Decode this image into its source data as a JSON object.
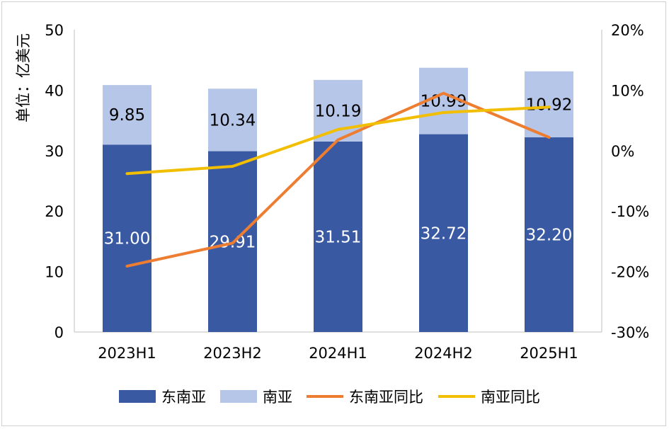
{
  "chart_data": {
    "type": "bar",
    "stacked": true,
    "categories": [
      "2023H1",
      "2023H2",
      "2024H1",
      "2024H2",
      "2025H1"
    ],
    "series": [
      {
        "name": "东南亚",
        "kind": "bar",
        "axis": "left",
        "color": "#3A59A3",
        "values": [
          31.0,
          29.91,
          31.51,
          32.72,
          32.2
        ],
        "labels": [
          "31.00",
          "29.91",
          "31.51",
          "32.72",
          "32.20"
        ]
      },
      {
        "name": "南亚",
        "kind": "bar",
        "axis": "left",
        "color": "#B6C6E8",
        "values": [
          9.85,
          10.34,
          10.19,
          10.99,
          10.92
        ],
        "labels": [
          "9.85",
          "10.34",
          "10.19",
          "10.99",
          "10.92"
        ]
      },
      {
        "name": "东南亚同比",
        "kind": "line",
        "axis": "right",
        "color": "#ED7D31",
        "values": [
          -19.1,
          -15.3,
          1.8,
          9.5,
          2.2
        ]
      },
      {
        "name": "南亚同比",
        "kind": "line",
        "axis": "right",
        "color": "#F2BE00",
        "values": [
          -3.8,
          -2.6,
          3.5,
          6.3,
          7.2
        ]
      }
    ],
    "ylabel": "单位：亿美元",
    "ylim": [
      0,
      50
    ],
    "y_ticks": [
      "0",
      "10",
      "20",
      "30",
      "40",
      "50"
    ],
    "y2lim": [
      -30,
      20
    ],
    "y2_ticks": [
      "-30%",
      "-20%",
      "-10%",
      "0%",
      "10%",
      "20%"
    ],
    "grid": false,
    "legend_position": "bottom"
  }
}
